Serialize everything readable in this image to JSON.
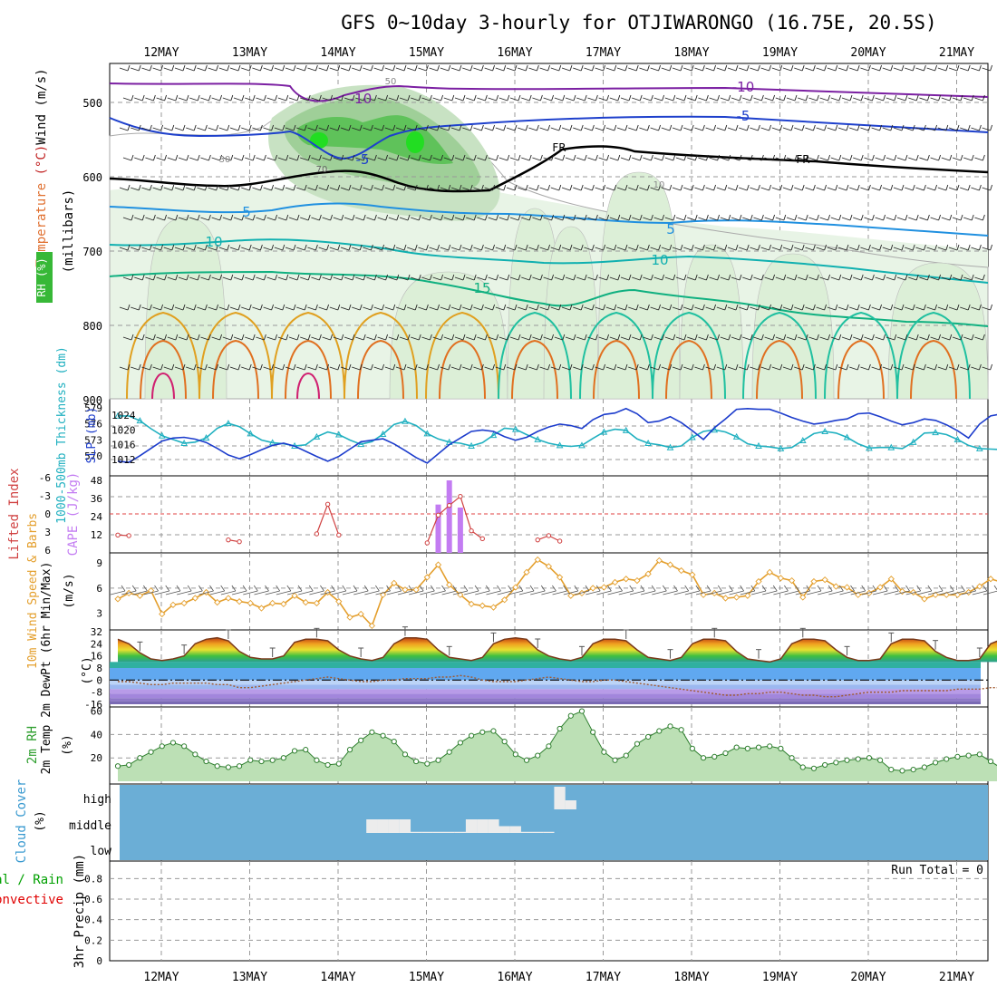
{
  "title": "GFS 0~10day 3-hourly for OTJIWARONGO (16.75E, 20.5S)",
  "dates": [
    "12MAY",
    "13MAY",
    "14MAY",
    "15MAY",
    "16MAY",
    "17MAY",
    "18MAY",
    "19MAY",
    "20MAY",
    "21MAY"
  ],
  "colors": {
    "rh": "#3fbf3f",
    "temp": "#d03030",
    "wind": "#a020f0",
    "thick": "#20b0c0",
    "slp": "#1c3ccc",
    "cape": "#c37cf2",
    "li": "#d04040",
    "wind10": "#e49f2d",
    "rh2": "#5a9d5a",
    "cloud": "#6baed6",
    "precip_total": "#00a000",
    "precip_conv": "#e00000"
  },
  "panels": {
    "upper": {
      "ylabel_parts": [
        {
          "text": "RH (%)",
          "color": "#2f9f2f"
        },
        {
          "text": "Temperature",
          "color": "#e07030"
        },
        {
          "text": "(°C)",
          "color": "#c02020"
        },
        {
          "text": "Wind (m/s)",
          "color": "#000000"
        }
      ],
      "ylabel_millibars": "(millibars)",
      "ticks": [
        "500",
        "600",
        "700",
        "800",
        "900"
      ],
      "labels": {
        "temp_m10": "-10",
        "temp_m10b": "-10",
        "temp_m5": "-5",
        "temp_m5b": "-5",
        "temp_5": "5",
        "temp_5b": "5",
        "temp_10": "10",
        "temp_10b": "10",
        "temp_15": "15",
        "fr1": "FR",
        "fr2": "FR",
        "rh_50": "50",
        "rh_30": "30",
        "rh_10": "10",
        "rh_70": "70"
      }
    },
    "thick": {
      "ylabel_left": "1000-500mb Thickness (dm)",
      "ylabel_right": "SLP (mb)",
      "left_ticks": [
        "579",
        "576",
        "573",
        "570"
      ],
      "right_ticks": [
        "1024",
        "1020",
        "1016",
        "1012"
      ]
    },
    "cape": {
      "ylabel_left": "Lifted Index",
      "ylabel_right": "CAPE (J/kg)",
      "left_ticks": [
        "-6",
        "-3",
        "0",
        "3",
        "6"
      ],
      "right_ticks": [
        "48",
        "36",
        "24",
        "12"
      ]
    },
    "wind10": {
      "ylabel": "10m Wind Speed & Barbs",
      "unit": "(m/s)",
      "ticks": [
        "9",
        "6",
        "3"
      ]
    },
    "temp2m": {
      "ylabel": "2m Temp 2m DewPt (6hr Min/Max)",
      "unit": "(°C)",
      "ticks": [
        "32",
        "24",
        "16",
        "8",
        "0",
        "-8",
        "-16"
      ]
    },
    "rh2m": {
      "ylabel": "2m RH",
      "unit": "(%)",
      "ticks": [
        "60",
        "40",
        "20"
      ]
    },
    "cloud": {
      "ylabel": "Cloud Cover",
      "unit": "(%)",
      "levels": [
        "high",
        "middle",
        "low"
      ]
    },
    "precip": {
      "ylabel": "3hr Precip (mm)",
      "legend_total": "Total / Rain",
      "legend_conv": "Convective",
      "run_total": "Run Total = 0",
      "ticks": [
        "0.8",
        "0.6",
        "0.4",
        "0.2",
        "0"
      ]
    }
  },
  "chart_data": [
    {
      "type": "line",
      "title": "1000-500mb Thickness (dm) / SLP (mb)",
      "x_unit": "3-hourly steps from 11 May 12Z",
      "series": [
        {
          "name": "1000-500mb Thickness (dm)",
          "axis": "left",
          "values": [
            577.5,
            577.5,
            576.6,
            575.1,
            573.8,
            573.1,
            572.4,
            572.6,
            573.4,
            575.2,
            576.1,
            575.5,
            574.2,
            573.0,
            572.5,
            572.3,
            571.9,
            572.1,
            573.6,
            574.5,
            574.0,
            573.0,
            572.2,
            572.7,
            574.1,
            575.9,
            576.5,
            575.7,
            574.2,
            573.2,
            572.6,
            572.4,
            571.9,
            572.5,
            573.9,
            575.2,
            575.0,
            574.0,
            573.1,
            572.4,
            572.0,
            571.8,
            572.0,
            573.3,
            574.5,
            575.0,
            574.8,
            573.2,
            572.4,
            572.1,
            571.6,
            571.9,
            573.5,
            574.6,
            574.9,
            574.5,
            573.6,
            572.3,
            571.9,
            571.7,
            571.4,
            571.6,
            572.9,
            574.2,
            574.6,
            574.3,
            573.5,
            572.3,
            571.5,
            571.6,
            571.6,
            571.4,
            572.6,
            574.3,
            574.4,
            574.0,
            573.1,
            572.0,
            571.4,
            571.3,
            571.2,
            571.0,
            570.7,
            570.3,
            570.0,
            570.5
          ]
        },
        {
          "name": "SLP (mb)",
          "axis": "right",
          "values": [
            1011.5,
            1011.2,
            1013.0,
            1015.0,
            1017.0,
            1017.8,
            1018.0,
            1017.5,
            1016.6,
            1015.0,
            1013.2,
            1012.2,
            1013.3,
            1014.6,
            1015.8,
            1016.4,
            1015.6,
            1014.2,
            1012.8,
            1011.5,
            1012.8,
            1014.8,
            1016.8,
            1017.2,
            1017.6,
            1016.2,
            1014.4,
            1012.5,
            1011.0,
            1013.5,
            1016.0,
            1017.8,
            1019.6,
            1020.0,
            1019.6,
            1018.2,
            1017.2,
            1018.0,
            1019.6,
            1020.8,
            1021.6,
            1021.2,
            1020.4,
            1022.8,
            1024.2,
            1024.6,
            1025.8,
            1024.4,
            1022.0,
            1022.4,
            1023.6,
            1022.0,
            1019.8,
            1017.4,
            1020.6,
            1023.0,
            1025.6,
            1025.8,
            1025.6,
            1025.6,
            1024.6,
            1023.4,
            1022.4,
            1021.6,
            1022.0,
            1022.6,
            1023.0,
            1024.4,
            1024.6,
            1023.6,
            1022.4,
            1021.4,
            1022.0,
            1023.0,
            1022.6,
            1021.4,
            1019.8,
            1017.8,
            1021.6,
            1023.8,
            1024.4,
            1023.8,
            1021.6,
            1020.8,
            1021.2,
            1022.4
          ]
        }
      ],
      "left_ylim": [
        568,
        579
      ],
      "right_ylim": [
        1010,
        1026
      ]
    },
    {
      "type": "bar",
      "title": "Lifted Index / CAPE (J/kg)",
      "x": [
        29,
        30,
        31
      ],
      "series": [
        {
          "name": "CAPE (J/kg)",
          "values": [
            32,
            48,
            30
          ]
        }
      ],
      "ylim": [
        0,
        48
      ]
    },
    {
      "type": "line",
      "title": "Lifted Index",
      "x": [
        0,
        1,
        10,
        11,
        18,
        19,
        20,
        28,
        29,
        30,
        31,
        32,
        33,
        38,
        39,
        40
      ],
      "series": [
        {
          "name": "Lifted Index",
          "values": [
            3.5,
            3.6,
            4.3,
            4.6,
            3.3,
            -1.6,
            3.5,
            4.8,
            0.2,
            -1.4,
            -2.9,
            2.8,
            4.1,
            4.3,
            3.6,
            4.5
          ]
        }
      ],
      "ylim": [
        6,
        -6
      ]
    },
    {
      "type": "line",
      "title": "10m Wind Speed",
      "series": [
        {
          "name": "10m Wind Speed (m/s)",
          "values": [
            4.7,
            5.4,
            5.1,
            5.7,
            2.9,
            4.0,
            4.2,
            4.8,
            5.5,
            4.3,
            4.8,
            4.4,
            4.2,
            3.6,
            4.2,
            4.1,
            5.1,
            4.3,
            4.2,
            5.5,
            4.4,
            2.5,
            2.9,
            1.5,
            5.2,
            6.6,
            5.8,
            5.8,
            7.3,
            8.8,
            6.4,
            5.2,
            4.1,
            3.9,
            3.7,
            4.6,
            6.1,
            7.9,
            9.4,
            8.6,
            7.3,
            5.1,
            5.4,
            6.0,
            6.1,
            6.7,
            7.1,
            6.9,
            7.7,
            9.3,
            8.8,
            8.1,
            7.6,
            5.2,
            5.4,
            4.8,
            4.9,
            5.1,
            6.8,
            7.9,
            7.2,
            6.9,
            4.9,
            6.8,
            7.0,
            6.2,
            6.1,
            5.2,
            5.4,
            6.1,
            7.1,
            5.6,
            5.5,
            4.7,
            5.2,
            5.2,
            5.2,
            5.5,
            6.2,
            7.1,
            6.7,
            5.6,
            5.2,
            4.6,
            5.1,
            6.3
          ]
        }
      ],
      "ylim": [
        1,
        10
      ]
    },
    {
      "type": "area",
      "title": "2m Temp / 2m DewPt",
      "series": [
        {
          "name": "2m Temp (°C)",
          "values": [
            27,
            24,
            18,
            14,
            13,
            14,
            16,
            24,
            27,
            28,
            26,
            19,
            15,
            14,
            14,
            16,
            25,
            27,
            27,
            26,
            20,
            16,
            14,
            13,
            15,
            24,
            28,
            28,
            27,
            20,
            15,
            14,
            13,
            15,
            24,
            27,
            28,
            27,
            20,
            16,
            14,
            13,
            15,
            24,
            27,
            27,
            26,
            20,
            15,
            14,
            13,
            15,
            24,
            27,
            27,
            26,
            19,
            14,
            13,
            12,
            14,
            24,
            27,
            27,
            26,
            20,
            15,
            13,
            13,
            14,
            24,
            27,
            27,
            26,
            19,
            15,
            13,
            13,
            14,
            24,
            27,
            26,
            24,
            17,
            14,
            12
          ]
        },
        {
          "name": "2m DewPt (°C)",
          "values": [
            -1,
            -1,
            -2,
            -3,
            -3,
            -2,
            -2,
            -2,
            -2,
            -3,
            -3,
            -5,
            -5,
            -4,
            -3,
            -2,
            -1,
            0,
            1,
            2,
            1,
            0,
            -1,
            -1,
            0,
            0,
            1,
            1,
            1,
            2,
            2,
            3,
            2,
            0,
            -1,
            -1,
            -1,
            0,
            1,
            2,
            1,
            0,
            -1,
            -1,
            0,
            0,
            -1,
            -2,
            -3,
            -4,
            -5,
            -6,
            -7,
            -8,
            -9,
            -10,
            -10,
            -9,
            -9,
            -8,
            -8,
            -9,
            -10,
            -10,
            -11,
            -11,
            -10,
            -9,
            -8,
            -8,
            -8,
            -7,
            -7,
            -7,
            -7,
            -7,
            -6,
            -6,
            -6,
            -5,
            -5,
            -4,
            -4,
            -4,
            -3,
            -3
          ]
        }
      ],
      "ylim": [
        -16,
        32
      ]
    },
    {
      "type": "area",
      "title": "2m RH",
      "series": [
        {
          "name": "2m RH (%)",
          "values": [
            13,
            14,
            20,
            25,
            30,
            33,
            30,
            23,
            17,
            13,
            12,
            13,
            18,
            17,
            18,
            20,
            26,
            27,
            18,
            14,
            15,
            27,
            35,
            42,
            39,
            34,
            23,
            17,
            15,
            18,
            25,
            33,
            39,
            42,
            43,
            34,
            23,
            18,
            22,
            30,
            45,
            56,
            60,
            42,
            25,
            18,
            22,
            32,
            38,
            43,
            47,
            44,
            28,
            20,
            21,
            24,
            29,
            28,
            29,
            30,
            28,
            20,
            12,
            11,
            14,
            16,
            18,
            19,
            20,
            18,
            10,
            9,
            10,
            12,
            16,
            19,
            21,
            22,
            23,
            17,
            11,
            11,
            14,
            20,
            25,
            30
          ]
        }
      ],
      "ylim": [
        0,
        62
      ]
    },
    {
      "type": "bar",
      "title": "Cloud Cover (%)",
      "series": [
        {
          "name": "high",
          "values": [
            0,
            0,
            0,
            0,
            0,
            0,
            0,
            0,
            0,
            0,
            0,
            0,
            0,
            0,
            0,
            0,
            0,
            0,
            0,
            0,
            0,
            0,
            0,
            0,
            0,
            0,
            0,
            0,
            0,
            0,
            0,
            0,
            0,
            0,
            0,
            0,
            0,
            0,
            0,
            100,
            40,
            0
          ]
        },
        {
          "name": "middle",
          "values": [
            0,
            0,
            0,
            0,
            0,
            0,
            0,
            0,
            0,
            0,
            0,
            0,
            0,
            0,
            0,
            0,
            0,
            0,
            0,
            0,
            0,
            0,
            60,
            60,
            60,
            60,
            5,
            5,
            5,
            5,
            5,
            60,
            60,
            60,
            30,
            30,
            5,
            5,
            5,
            0,
            0,
            0
          ]
        }
      ],
      "ylim": [
        0,
        100
      ]
    },
    {
      "type": "bar",
      "title": "3hr Precip (mm)",
      "series": [
        {
          "name": "Total / Rain",
          "values": [
            0
          ]
        },
        {
          "name": "Convective",
          "values": [
            0
          ]
        }
      ],
      "ylim": [
        0,
        0.9
      ]
    }
  ]
}
